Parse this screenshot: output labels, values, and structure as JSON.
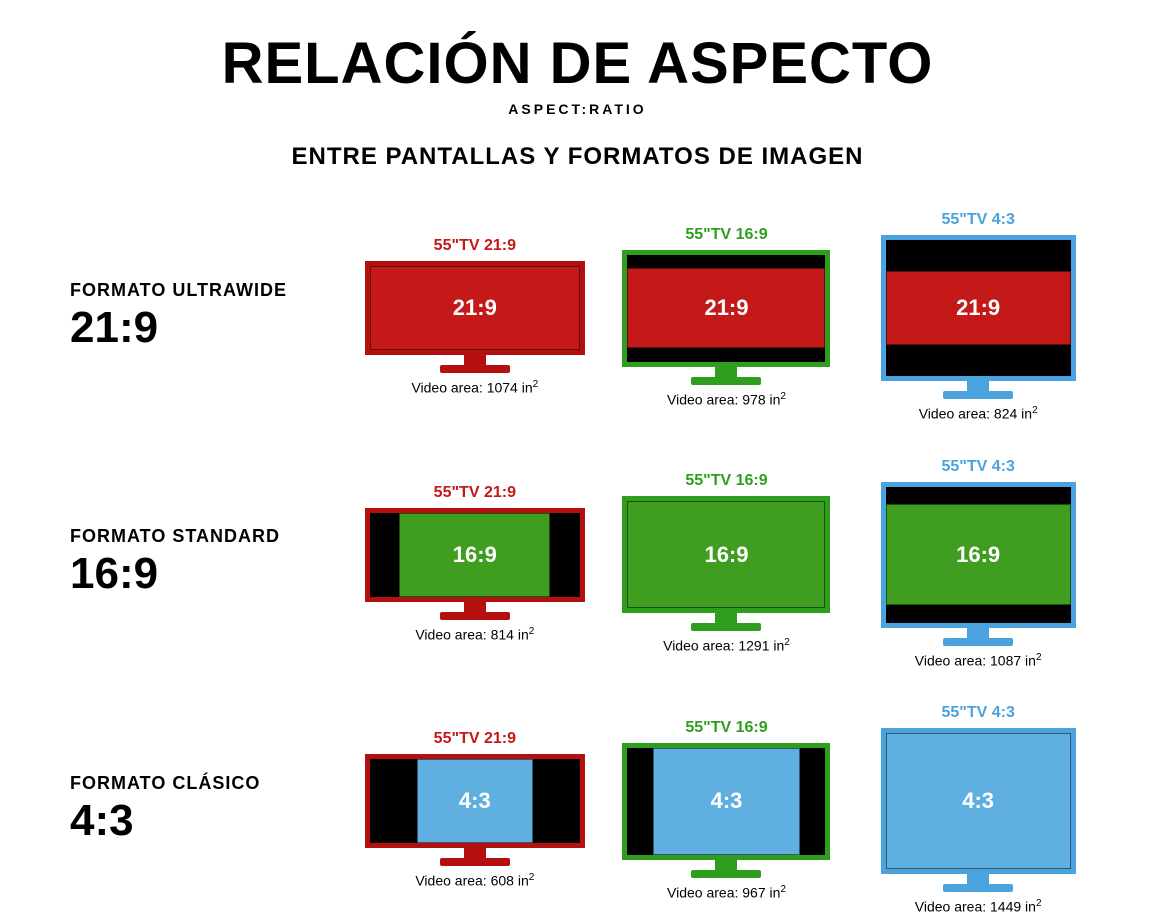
{
  "header": {
    "title": "RELACIÓN DE ASPECTO",
    "subtitle": "ASPECT:RATIO",
    "subhead": "ENTRE PANTALLAS Y FORMATOS DE IMAGEN"
  },
  "colors": {
    "red": "#c51818",
    "red_dark": "#b51010",
    "green": "#3f9e1f",
    "green_frame": "#2f9e1f",
    "blue": "#5fb0e0",
    "blue_frame": "#4aa3df",
    "black": "#000000",
    "white": "#ffffff"
  },
  "typography": {
    "title_fontsize": 58,
    "subtitle_fontsize": 14,
    "subhead_fontsize": 24,
    "rowlabel_fontsize": 18,
    "ratio_fontsize": 44,
    "tvtitle_fontsize": 16,
    "content_fontsize": 22,
    "caption_fontsize": 14
  },
  "rows": [
    {
      "format_label": "FORMATO ULTRAWIDE",
      "ratio": "21:9",
      "content_ratio_class": "c-21-9",
      "content_fill": "fill-red",
      "cells": [
        {
          "tv_label": "55\"TV 21:9",
          "tv_class": "tv-21-9",
          "frame": "frame-red",
          "title_color": "t-red",
          "content_text": "21:9",
          "area": "1074"
        },
        {
          "tv_label": "55\"TV 16:9",
          "tv_class": "tv-16-9",
          "frame": "frame-green",
          "title_color": "t-green",
          "content_text": "21:9",
          "area": "978"
        },
        {
          "tv_label": "55\"TV 4:3",
          "tv_class": "tv-4-3",
          "frame": "frame-blue",
          "title_color": "t-blue",
          "content_text": "21:9",
          "area": "824"
        }
      ]
    },
    {
      "format_label": "FORMATO STANDARD",
      "ratio": "16:9",
      "content_ratio_class": "c-16-9",
      "content_fill": "fill-green",
      "cells": [
        {
          "tv_label": "55\"TV 21:9",
          "tv_class": "tv-21-9",
          "frame": "frame-red",
          "title_color": "t-red",
          "content_text": "16:9",
          "area": "814"
        },
        {
          "tv_label": "55\"TV 16:9",
          "tv_class": "tv-16-9",
          "frame": "frame-green",
          "title_color": "t-green",
          "content_text": "16:9",
          "area": "1291"
        },
        {
          "tv_label": "55\"TV 4:3",
          "tv_class": "tv-4-3",
          "frame": "frame-blue",
          "title_color": "t-blue",
          "content_text": "16:9",
          "area": "1087"
        }
      ]
    },
    {
      "format_label": "FORMATO CLÁSICO",
      "ratio": "4:3",
      "content_ratio_class": "c-4-3",
      "content_fill": "fill-blue",
      "cells": [
        {
          "tv_label": "55\"TV 21:9",
          "tv_class": "tv-21-9",
          "frame": "frame-red",
          "title_color": "t-red",
          "content_text": "4:3",
          "area": "608"
        },
        {
          "tv_label": "55\"TV 16:9",
          "tv_class": "tv-16-9",
          "frame": "frame-green",
          "title_color": "t-green",
          "content_text": "4:3",
          "area": "967"
        },
        {
          "tv_label": "55\"TV 4:3",
          "tv_class": "tv-4-3",
          "frame": "frame-blue",
          "title_color": "t-blue",
          "content_text": "4:3",
          "area": "1449"
        }
      ]
    }
  ],
  "caption_prefix": "Video area: ",
  "caption_unit": " in"
}
